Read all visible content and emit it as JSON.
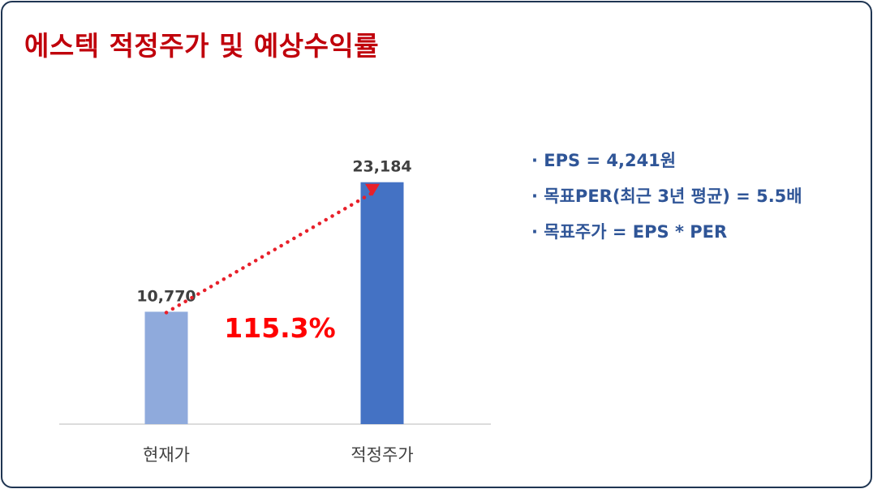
{
  "title": "에스텍 적정주가 및 예상수익률",
  "chart_data": {
    "type": "bar",
    "categories": [
      "현재가",
      "적정주가"
    ],
    "values": [
      10770,
      23184
    ],
    "value_labels": [
      "10,770",
      "23,184"
    ],
    "colors": [
      "#8faadc",
      "#4472c4"
    ],
    "annotation": "115.3%",
    "annotation_color": "#ff0000",
    "connector_color": "#e8202a",
    "ylim": [
      0,
      30000
    ]
  },
  "info_lines": [
    "· EPS  =  4,241원",
    "· 목표PER(최근 3년 평균)  =  5.5배",
    "· 목표주가  =  EPS  *  PER"
  ]
}
